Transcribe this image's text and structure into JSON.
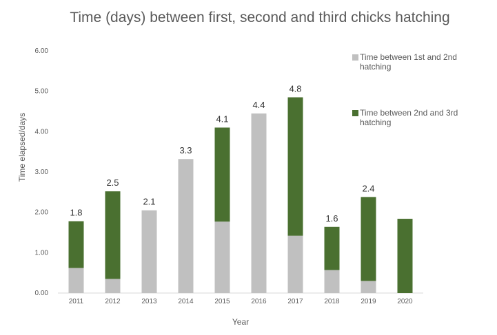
{
  "chart_data": {
    "type": "bar",
    "stacked": true,
    "title": "Time (days) between first, second and third chicks hatching",
    "xlabel": "Year",
    "ylabel": "Time elapsed/days",
    "categories": [
      "2011",
      "2012",
      "2013",
      "2014",
      "2015",
      "2016",
      "2017",
      "2018",
      "2019",
      "2020"
    ],
    "ylim": [
      0,
      6
    ],
    "yticks": [
      "0.00",
      "1.00",
      "2.00",
      "3.00",
      "4.00",
      "5.00",
      "6.00"
    ],
    "grid": false,
    "legend_position": "right",
    "series": [
      {
        "name": "Time between 1st and 2nd hatching",
        "color": "#c0c0c0",
        "values": [
          0.62,
          0.35,
          2.05,
          3.32,
          1.77,
          4.45,
          1.42,
          0.57,
          0.3,
          0
        ]
      },
      {
        "name": "Time between 2nd and 3rd hatching",
        "color": "#4a7030",
        "values": [
          1.16,
          2.17,
          0,
          0,
          2.33,
          0,
          3.43,
          1.07,
          2.08,
          1.84
        ]
      }
    ],
    "total_labels": [
      "1.8",
      "2.5",
      "2.1",
      "3.3",
      "4.1",
      "4.4",
      "4.8",
      "1.6",
      "2.4",
      ""
    ]
  }
}
